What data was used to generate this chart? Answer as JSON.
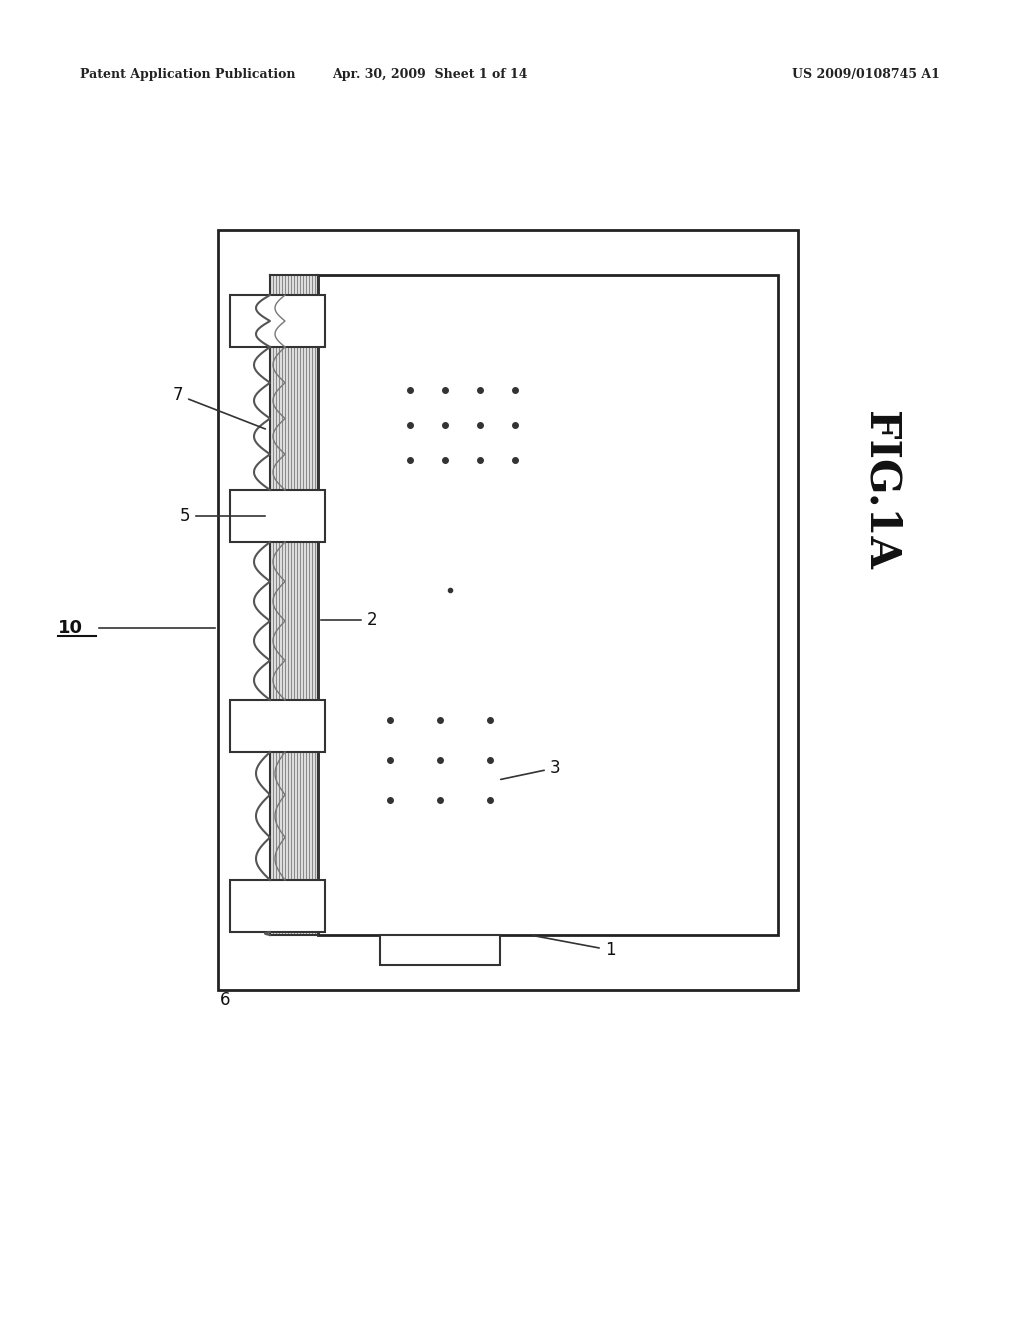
{
  "bg_color": "#ffffff",
  "header_left": "Patent Application Publication",
  "header_mid": "Apr. 30, 2009  Sheet 1 of 14",
  "header_right": "US 2009/0108745 A1",
  "fig_label": "FIG.1A",
  "device_label": "10",
  "label_1": "1",
  "label_2": "2",
  "label_3": "3",
  "label_5": "5",
  "label_6": "6",
  "label_7": "7"
}
